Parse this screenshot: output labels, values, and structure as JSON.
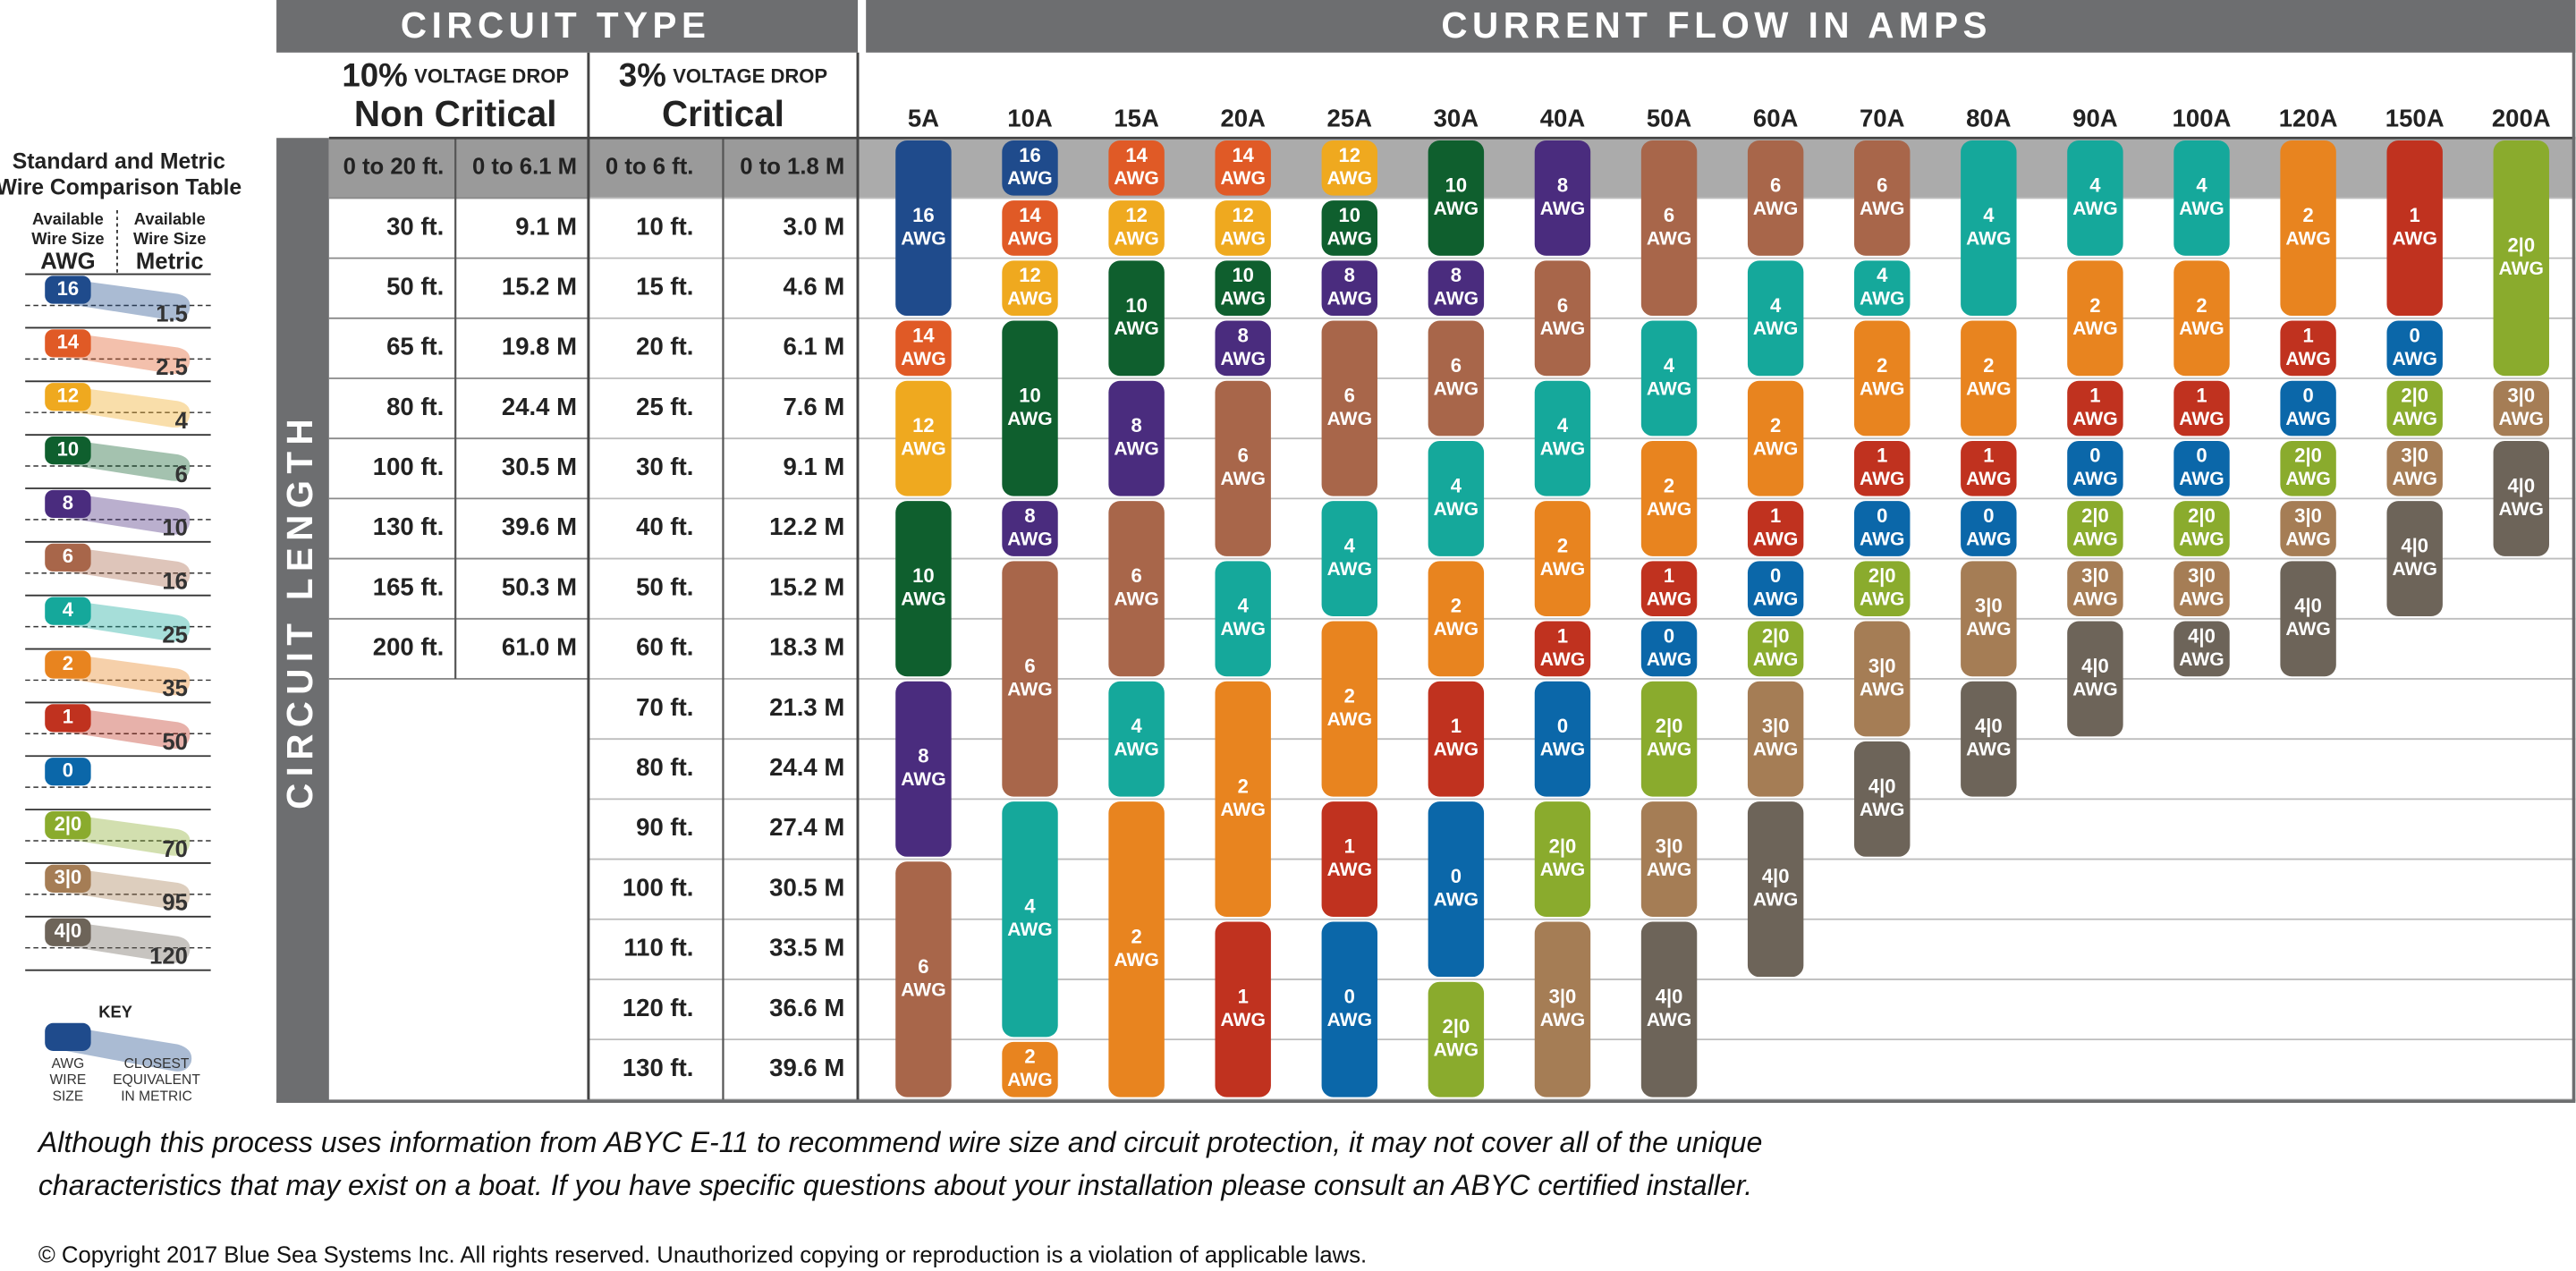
{
  "side_table": {
    "title": [
      "Standard and Metric",
      "Wire Comparison Table"
    ],
    "awg_caption": [
      "Available",
      "Wire Size"
    ],
    "awg_heading": "AWG",
    "metric_caption": [
      "Available",
      "Wire Size"
    ],
    "metric_heading": "Metric",
    "wire_sizes": [
      {
        "awg": "16",
        "metric": "1.5"
      },
      {
        "awg": "14",
        "metric": "2.5"
      },
      {
        "awg": "12",
        "metric": "4"
      },
      {
        "awg": "10",
        "metric": "6"
      },
      {
        "awg": "8",
        "metric": "10"
      },
      {
        "awg": "6",
        "metric": "16"
      },
      {
        "awg": "4",
        "metric": "25"
      },
      {
        "awg": "2",
        "metric": "35"
      },
      {
        "awg": "1",
        "metric": "50"
      },
      {
        "awg": "0"
      },
      {
        "awg": "2|0",
        "metric": "70"
      },
      {
        "awg": "3|0",
        "metric": "95"
      },
      {
        "awg": "4|0",
        "metric": "120"
      }
    ],
    "key": {
      "title": "KEY",
      "awg_caption": [
        "AWG",
        "WIRE",
        "SIZE"
      ],
      "metric_caption": [
        "CLOSEST",
        "EQUIVALENT",
        "IN METRIC"
      ]
    }
  },
  "header": {
    "circuit_type": "CIRCUIT TYPE",
    "current_flow": "CURRENT FLOW IN AMPS",
    "circuit_length": "CIRCUIT LENGTH",
    "non_critical": {
      "percent": "10%",
      "drop": "VOLTAGE DROP",
      "label": "Non Critical"
    },
    "critical": {
      "percent": "3%",
      "drop": "VOLTAGE DROP",
      "label": "Critical"
    }
  },
  "lengths": {
    "non_critical": [
      [
        "0 to 20 ft.",
        "0 to 6.1 M"
      ],
      [
        "30 ft.",
        "9.1 M"
      ],
      [
        "50 ft.",
        "15.2 M"
      ],
      [
        "65 ft.",
        "19.8 M"
      ],
      [
        "80 ft.",
        "24.4 M"
      ],
      [
        "100 ft.",
        "30.5 M"
      ],
      [
        "130 ft.",
        "39.6 M"
      ],
      [
        "165 ft.",
        "50.3 M"
      ],
      [
        "200 ft.",
        "61.0 M"
      ]
    ],
    "critical": [
      [
        "0 to 6 ft.",
        "0 to 1.8 M"
      ],
      [
        "10 ft.",
        "3.0 M"
      ],
      [
        "15 ft.",
        "4.6 M"
      ],
      [
        "20 ft.",
        "6.1 M"
      ],
      [
        "25 ft.",
        "7.6 M"
      ],
      [
        "30 ft.",
        "9.1 M"
      ],
      [
        "40 ft.",
        "12.2 M"
      ],
      [
        "50 ft.",
        "15.2 M"
      ],
      [
        "60 ft.",
        "18.3 M"
      ],
      [
        "70 ft.",
        "21.3 M"
      ],
      [
        "80 ft.",
        "24.4 M"
      ],
      [
        "90 ft.",
        "27.4 M"
      ],
      [
        "100 ft.",
        "30.5 M"
      ],
      [
        "110 ft.",
        "33.5 M"
      ],
      [
        "120 ft.",
        "36.6 M"
      ],
      [
        "130 ft.",
        "39.6 M"
      ]
    ]
  },
  "unit": "AWG",
  "colors": {
    "16": "#1f4b8c",
    "14": "#e05a26",
    "12": "#efa91f",
    "10": "#0f5f2e",
    "8": "#4a2c7e",
    "6": "#a8664a",
    "4": "#15a89b",
    "2": "#e8841f",
    "1": "#c0321f",
    "0": "#0b67a9",
    "2|0": "#8aab2d",
    "3|0": "#a57d55",
    "4|0": "#6d6459"
  },
  "columns": [
    {
      "amps": "5A",
      "wires": [
        {
          "gauge": "16",
          "span": 3
        },
        {
          "gauge": "14",
          "span": 1
        },
        {
          "gauge": "12",
          "span": 2
        },
        {
          "gauge": "10",
          "span": 3
        },
        {
          "gauge": "8",
          "span": 3
        },
        {
          "gauge": "6",
          "span": 4
        }
      ]
    },
    {
      "amps": "10A",
      "wires": [
        {
          "gauge": "16",
          "span": 1
        },
        {
          "gauge": "14",
          "span": 1
        },
        {
          "gauge": "12",
          "span": 1
        },
        {
          "gauge": "10",
          "span": 3
        },
        {
          "gauge": "8",
          "span": 1
        },
        {
          "gauge": "6",
          "span": 4
        },
        {
          "gauge": "4",
          "span": 4
        },
        {
          "gauge": "2",
          "span": 1
        }
      ]
    },
    {
      "amps": "15A",
      "wires": [
        {
          "gauge": "14",
          "span": 1
        },
        {
          "gauge": "12",
          "span": 1
        },
        {
          "gauge": "10",
          "span": 2
        },
        {
          "gauge": "8",
          "span": 2
        },
        {
          "gauge": "6",
          "span": 3
        },
        {
          "gauge": "4",
          "span": 2
        },
        {
          "gauge": "2",
          "span": 5
        }
      ]
    },
    {
      "amps": "20A",
      "wires": [
        {
          "gauge": "14",
          "span": 1
        },
        {
          "gauge": "12",
          "span": 1
        },
        {
          "gauge": "10",
          "span": 1
        },
        {
          "gauge": "8",
          "span": 1
        },
        {
          "gauge": "6",
          "span": 3
        },
        {
          "gauge": "4",
          "span": 2
        },
        {
          "gauge": "2",
          "span": 4
        },
        {
          "gauge": "1",
          "span": 3
        }
      ]
    },
    {
      "amps": "25A",
      "wires": [
        {
          "gauge": "12",
          "span": 1
        },
        {
          "gauge": "10",
          "span": 1
        },
        {
          "gauge": "8",
          "span": 1
        },
        {
          "gauge": "6",
          "span": 3
        },
        {
          "gauge": "4",
          "span": 2
        },
        {
          "gauge": "2",
          "span": 3
        },
        {
          "gauge": "1",
          "span": 2
        },
        {
          "gauge": "0",
          "span": 3
        }
      ]
    },
    {
      "amps": "30A",
      "wires": [
        {
          "gauge": "10",
          "span": 2
        },
        {
          "gauge": "8",
          "span": 1
        },
        {
          "gauge": "6",
          "span": 2
        },
        {
          "gauge": "4",
          "span": 2
        },
        {
          "gauge": "2",
          "span": 2
        },
        {
          "gauge": "1",
          "span": 2
        },
        {
          "gauge": "0",
          "span": 3
        },
        {
          "gauge": "2|0",
          "span": 2
        }
      ]
    },
    {
      "amps": "40A",
      "wires": [
        {
          "gauge": "8",
          "span": 2
        },
        {
          "gauge": "6",
          "span": 2
        },
        {
          "gauge": "4",
          "span": 2
        },
        {
          "gauge": "2",
          "span": 2
        },
        {
          "gauge": "1",
          "span": 1
        },
        {
          "gauge": "0",
          "span": 2
        },
        {
          "gauge": "2|0",
          "span": 2
        },
        {
          "gauge": "3|0",
          "span": 3
        }
      ]
    },
    {
      "amps": "50A",
      "wires": [
        {
          "gauge": "6",
          "span": 3
        },
        {
          "gauge": "4",
          "span": 2
        },
        {
          "gauge": "2",
          "span": 2
        },
        {
          "gauge": "1",
          "span": 1
        },
        {
          "gauge": "0",
          "span": 1
        },
        {
          "gauge": "2|0",
          "span": 2
        },
        {
          "gauge": "3|0",
          "span": 2
        },
        {
          "gauge": "4|0",
          "span": 3
        }
      ]
    },
    {
      "amps": "60A",
      "wires": [
        {
          "gauge": "6",
          "span": 2
        },
        {
          "gauge": "4",
          "span": 2
        },
        {
          "gauge": "2",
          "span": 2
        },
        {
          "gauge": "1",
          "span": 1
        },
        {
          "gauge": "0",
          "span": 1
        },
        {
          "gauge": "2|0",
          "span": 1
        },
        {
          "gauge": "3|0",
          "span": 2
        },
        {
          "gauge": "4|0",
          "span": 3
        }
      ]
    },
    {
      "amps": "70A",
      "wires": [
        {
          "gauge": "6",
          "span": 2
        },
        {
          "gauge": "4",
          "span": 1
        },
        {
          "gauge": "2",
          "span": 2
        },
        {
          "gauge": "1",
          "span": 1
        },
        {
          "gauge": "0",
          "span": 1
        },
        {
          "gauge": "2|0",
          "span": 1
        },
        {
          "gauge": "3|0",
          "span": 2
        },
        {
          "gauge": "4|0",
          "span": 2
        }
      ]
    },
    {
      "amps": "80A",
      "wires": [
        {
          "gauge": "4",
          "span": 3
        },
        {
          "gauge": "2",
          "span": 2
        },
        {
          "gauge": "1",
          "span": 1
        },
        {
          "gauge": "0",
          "span": 1
        },
        {
          "gauge": "3|0",
          "span": 2
        },
        {
          "gauge": "4|0",
          "span": 2
        }
      ]
    },
    {
      "amps": "90A",
      "wires": [
        {
          "gauge": "4",
          "span": 2
        },
        {
          "gauge": "2",
          "span": 2
        },
        {
          "gauge": "1",
          "span": 1
        },
        {
          "gauge": "0",
          "span": 1
        },
        {
          "gauge": "2|0",
          "span": 1
        },
        {
          "gauge": "3|0",
          "span": 1
        },
        {
          "gauge": "4|0",
          "span": 2
        }
      ]
    },
    {
      "amps": "100A",
      "wires": [
        {
          "gauge": "4",
          "span": 2
        },
        {
          "gauge": "2",
          "span": 2
        },
        {
          "gauge": "1",
          "span": 1
        },
        {
          "gauge": "0",
          "span": 1
        },
        {
          "gauge": "2|0",
          "span": 1
        },
        {
          "gauge": "3|0",
          "span": 1
        },
        {
          "gauge": "4|0",
          "span": 1
        }
      ]
    },
    {
      "amps": "120A",
      "wires": [
        {
          "gauge": "2",
          "span": 3
        },
        {
          "gauge": "1",
          "span": 1
        },
        {
          "gauge": "0",
          "span": 1
        },
        {
          "gauge": "2|0",
          "span": 1
        },
        {
          "gauge": "3|0",
          "span": 1
        },
        {
          "gauge": "4|0",
          "span": 2
        }
      ]
    },
    {
      "amps": "150A",
      "wires": [
        {
          "gauge": "1",
          "span": 3
        },
        {
          "gauge": "0",
          "span": 1
        },
        {
          "gauge": "2|0",
          "span": 1
        },
        {
          "gauge": "3|0",
          "span": 1
        },
        {
          "gauge": "4|0",
          "span": 2
        }
      ]
    },
    {
      "amps": "200A",
      "wires": [
        {
          "gauge": "2|0",
          "span": 4
        },
        {
          "gauge": "3|0",
          "span": 1
        },
        {
          "gauge": "4|0",
          "span": 2
        }
      ]
    }
  ],
  "footer": {
    "disclaimer": [
      "Although this process uses information from ABYC E-11 to recommend wire size and circuit protection, it may not cover all of the unique",
      "characteristics that may exist on a boat. If you have specific questions about your installation please consult an ABYC certified installer."
    ],
    "copyright": "© Copyright 2017 Blue Sea Systems Inc. All rights reserved. Unauthorized copying or reproduction is a violation of applicable laws."
  }
}
